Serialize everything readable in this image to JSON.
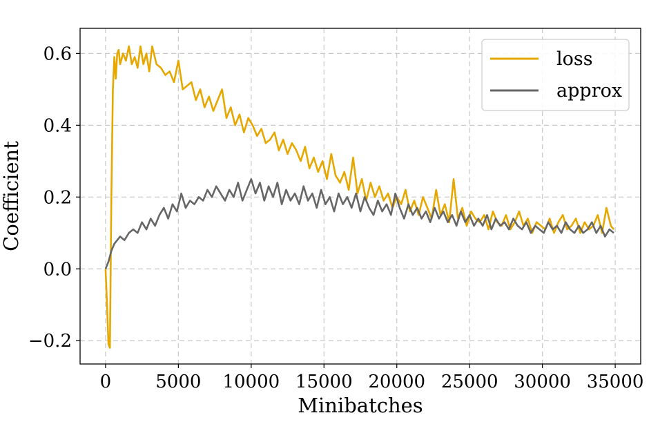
{
  "chart_data": {
    "type": "line",
    "title": "",
    "xlabel": "Minibatches",
    "ylabel": "Coefficient",
    "xlim": [
      -1750,
      36750
    ],
    "ylim": [
      -0.265,
      0.67
    ],
    "xticks": [
      0,
      5000,
      10000,
      15000,
      20000,
      25000,
      30000,
      35000
    ],
    "xtick_labels": [
      "0",
      "5000",
      "10000",
      "15000",
      "20000",
      "25000",
      "30000",
      "35000"
    ],
    "yticks": [
      -0.2,
      0.0,
      0.2,
      0.4,
      0.6
    ],
    "ytick_labels": [
      "−0.2",
      "0.0",
      "0.2",
      "0.4",
      "0.6"
    ],
    "grid": true,
    "legend_position": "top-right",
    "series": [
      {
        "name": "loss",
        "color": "#e6a800",
        "x": [
          0,
          100,
          200,
          300,
          400,
          500,
          600,
          700,
          800,
          900,
          1000,
          1200,
          1400,
          1600,
          1800,
          2000,
          2200,
          2400,
          2600,
          2800,
          3000,
          3200,
          3500,
          3800,
          4100,
          4400,
          4700,
          5000,
          5300,
          5600,
          5900,
          6200,
          6500,
          6800,
          7100,
          7400,
          7700,
          8000,
          8300,
          8600,
          8900,
          9200,
          9500,
          9800,
          10100,
          10400,
          10700,
          11000,
          11300,
          11600,
          11900,
          12200,
          12500,
          12800,
          13100,
          13400,
          13700,
          14000,
          14300,
          14600,
          14900,
          15200,
          15500,
          15800,
          16100,
          16400,
          16700,
          17000,
          17300,
          17600,
          17900,
          18200,
          18500,
          18800,
          19100,
          19400,
          19700,
          20000,
          20300,
          20600,
          20900,
          21200,
          21500,
          21800,
          22100,
          22400,
          22700,
          23000,
          23300,
          23600,
          23900,
          24200,
          24500,
          24800,
          25100,
          25400,
          25700,
          26000,
          26300,
          26600,
          26900,
          27200,
          27500,
          27800,
          28100,
          28400,
          28700,
          29000,
          29300,
          29600,
          29900,
          30200,
          30500,
          30800,
          31100,
          31400,
          31700,
          32000,
          32300,
          32600,
          32900,
          33200,
          33500,
          33800,
          34100,
          34400,
          34700,
          34900
        ],
        "y": [
          0.0,
          -0.1,
          -0.21,
          -0.22,
          0.2,
          0.5,
          0.59,
          0.53,
          0.6,
          0.61,
          0.57,
          0.6,
          0.58,
          0.62,
          0.57,
          0.59,
          0.56,
          0.62,
          0.57,
          0.6,
          0.55,
          0.62,
          0.57,
          0.56,
          0.54,
          0.55,
          0.52,
          0.58,
          0.5,
          0.51,
          0.52,
          0.47,
          0.5,
          0.45,
          0.48,
          0.44,
          0.47,
          0.5,
          0.42,
          0.45,
          0.4,
          0.43,
          0.38,
          0.42,
          0.4,
          0.37,
          0.39,
          0.35,
          0.36,
          0.38,
          0.33,
          0.36,
          0.32,
          0.35,
          0.33,
          0.3,
          0.34,
          0.28,
          0.31,
          0.27,
          0.3,
          0.25,
          0.32,
          0.26,
          0.24,
          0.27,
          0.22,
          0.31,
          0.21,
          0.25,
          0.19,
          0.24,
          0.2,
          0.23,
          0.19,
          0.21,
          0.17,
          0.2,
          0.18,
          0.22,
          0.16,
          0.19,
          0.15,
          0.2,
          0.17,
          0.14,
          0.22,
          0.15,
          0.18,
          0.13,
          0.25,
          0.14,
          0.17,
          0.12,
          0.16,
          0.14,
          0.13,
          0.15,
          0.11,
          0.16,
          0.13,
          0.12,
          0.15,
          0.11,
          0.13,
          0.16,
          0.12,
          0.14,
          0.1,
          0.13,
          0.12,
          0.11,
          0.14,
          0.1,
          0.13,
          0.15,
          0.11,
          0.12,
          0.14,
          0.1,
          0.13,
          0.11,
          0.12,
          0.15,
          0.1,
          0.17,
          0.12,
          0.11
        ]
      },
      {
        "name": "approx",
        "color": "#666666",
        "x": [
          0,
          200,
          400,
          600,
          800,
          1000,
          1300,
          1600,
          1900,
          2200,
          2500,
          2800,
          3100,
          3400,
          3700,
          4000,
          4300,
          4600,
          4900,
          5200,
          5500,
          5800,
          6100,
          6400,
          6700,
          7000,
          7300,
          7600,
          7900,
          8200,
          8500,
          8800,
          9100,
          9400,
          9700,
          10000,
          10300,
          10600,
          10900,
          11200,
          11500,
          11800,
          12100,
          12400,
          12700,
          13000,
          13300,
          13600,
          13900,
          14200,
          14500,
          14800,
          15100,
          15400,
          15700,
          16000,
          16300,
          16600,
          16900,
          17200,
          17500,
          17800,
          18100,
          18400,
          18700,
          19000,
          19300,
          19600,
          19900,
          20200,
          20500,
          20800,
          21100,
          21400,
          21700,
          22000,
          22300,
          22600,
          22900,
          23200,
          23500,
          23800,
          24100,
          24400,
          24700,
          25000,
          25300,
          25600,
          25900,
          26200,
          26500,
          26800,
          27100,
          27400,
          27700,
          28000,
          28300,
          28600,
          28900,
          29200,
          29500,
          29800,
          30100,
          30400,
          30700,
          31000,
          31300,
          31600,
          31900,
          32200,
          32500,
          32800,
          33100,
          33400,
          33700,
          34000,
          34300,
          34600,
          34900
        ],
        "y": [
          0.0,
          0.02,
          0.05,
          0.07,
          0.08,
          0.09,
          0.08,
          0.1,
          0.11,
          0.1,
          0.13,
          0.11,
          0.14,
          0.12,
          0.15,
          0.17,
          0.14,
          0.18,
          0.16,
          0.21,
          0.17,
          0.19,
          0.18,
          0.2,
          0.19,
          0.22,
          0.2,
          0.23,
          0.21,
          0.19,
          0.22,
          0.2,
          0.24,
          0.19,
          0.22,
          0.25,
          0.21,
          0.24,
          0.19,
          0.23,
          0.2,
          0.24,
          0.18,
          0.22,
          0.19,
          0.21,
          0.18,
          0.23,
          0.19,
          0.21,
          0.17,
          0.22,
          0.18,
          0.2,
          0.16,
          0.21,
          0.18,
          0.2,
          0.17,
          0.21,
          0.16,
          0.2,
          0.17,
          0.15,
          0.19,
          0.16,
          0.18,
          0.15,
          0.21,
          0.17,
          0.14,
          0.18,
          0.15,
          0.17,
          0.14,
          0.16,
          0.13,
          0.17,
          0.14,
          0.16,
          0.13,
          0.15,
          0.12,
          0.16,
          0.13,
          0.15,
          0.12,
          0.14,
          0.12,
          0.15,
          0.11,
          0.14,
          0.12,
          0.13,
          0.11,
          0.14,
          0.12,
          0.11,
          0.13,
          0.1,
          0.12,
          0.11,
          0.1,
          0.13,
          0.11,
          0.12,
          0.1,
          0.13,
          0.11,
          0.1,
          0.12,
          0.1,
          0.11,
          0.13,
          0.1,
          0.12,
          0.09,
          0.11,
          0.1
        ]
      }
    ]
  }
}
